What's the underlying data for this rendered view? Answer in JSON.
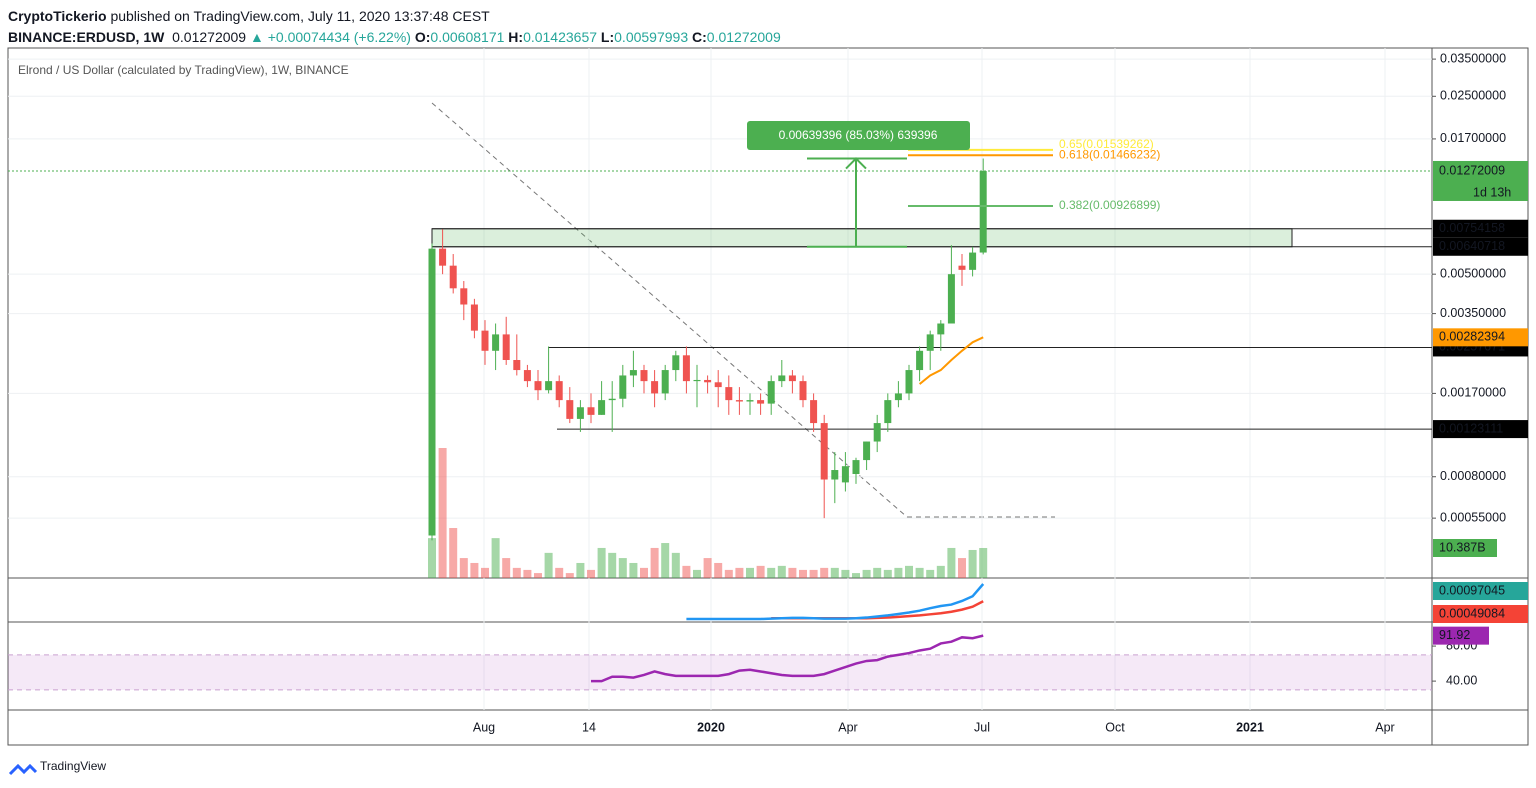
{
  "header": {
    "author": "CryptoTickerio",
    "published": "published on TradingView.com, July 11, 2020 13:37:48 CEST",
    "symbol": "BINANCE:ERDUSD, 1W",
    "change": "▲ +0.00074434 (+6.22%)",
    "ohlc_labels": [
      "O:",
      "H:",
      "L:",
      "C:"
    ]
  },
  "chart_data": {
    "type": "candlestick",
    "title": "Elrond / US Dollar (calculated by TradingView), 1W, BINANCE",
    "log_scale": true,
    "grid": true,
    "up_color": "#4caf50",
    "down_color": "#ef5350",
    "ylim": [
      0.00032,
      0.0387
    ],
    "yticks": [
      {
        "value": 0.035,
        "label": "0.03500000"
      },
      {
        "value": 0.025,
        "label": "0.02500000"
      },
      {
        "value": 0.017,
        "label": "0.01700000"
      },
      {
        "value": 0.005,
        "label": "0.00500000"
      },
      {
        "value": 0.0035,
        "label": "0.00350000"
      },
      {
        "value": 0.0017,
        "label": "0.00170000"
      },
      {
        "value": 0.0008,
        "label": "0.00080000"
      },
      {
        "value": 0.00055,
        "label": "0.00055000"
      }
    ],
    "xticks": [
      "Aug",
      "14",
      "2020",
      "Apr",
      "Jul",
      "Oct",
      "2021",
      "Apr"
    ],
    "open": [
      0.00047,
      0.0063,
      0.0054,
      0.0044,
      0.0038,
      0.003,
      0.0025,
      0.0029,
      0.0023,
      0.0021,
      0.0019,
      0.00175,
      0.0019,
      0.0016,
      0.00135,
      0.0015,
      0.0014,
      0.0016,
      0.00162,
      0.002,
      0.0021,
      0.0019,
      0.0017,
      0.0021,
      0.0024,
      0.0019,
      0.00192,
      0.00188,
      0.0018,
      0.0016,
      0.00158,
      0.0016,
      0.00155,
      0.0019,
      0.002,
      0.0019,
      0.0016,
      0.0013,
      0.00078,
      0.00076,
      0.00082,
      0.00093,
      0.0011,
      0.0013,
      0.0016,
      0.0017,
      0.0021,
      0.0025,
      0.0029,
      0.0032,
      0.0054,
      0.0052,
      0.00608171
    ],
    "high": [
      0.0066,
      0.0075,
      0.006,
      0.0047,
      0.004,
      0.0033,
      0.0032,
      0.0034,
      0.0029,
      0.0022,
      0.0021,
      0.0026,
      0.002,
      0.0018,
      0.0016,
      0.0017,
      0.0019,
      0.0019,
      0.0022,
      0.0025,
      0.0022,
      0.0021,
      0.0022,
      0.0025,
      0.0026,
      0.0022,
      0.002,
      0.0021,
      0.002,
      0.0018,
      0.0017,
      0.0017,
      0.002,
      0.0023,
      0.0021,
      0.002,
      0.0017,
      0.0014,
      0.001,
      0.001,
      0.00095,
      0.0011,
      0.0014,
      0.0017,
      0.0019,
      0.0022,
      0.0026,
      0.003,
      0.0033,
      0.0065,
      0.006,
      0.0064,
      0.01423657
    ],
    "low": [
      0.00045,
      0.005,
      0.0042,
      0.0033,
      0.0028,
      0.0022,
      0.0021,
      0.0022,
      0.002,
      0.0018,
      0.0016,
      0.0017,
      0.0015,
      0.0013,
      0.0012,
      0.0013,
      0.0014,
      0.0012,
      0.0015,
      0.0018,
      0.0017,
      0.0015,
      0.0016,
      0.0019,
      0.0017,
      0.0015,
      0.0017,
      0.0015,
      0.0014,
      0.0014,
      0.0014,
      0.0014,
      0.0014,
      0.0018,
      0.0017,
      0.0015,
      0.0012,
      0.00055,
      0.00063,
      0.0007,
      0.00075,
      0.00085,
      0.001,
      0.0012,
      0.0015,
      0.0016,
      0.0019,
      0.0021,
      0.0025,
      0.0032,
      0.0045,
      0.0049,
      0.00597993
    ],
    "close": [
      0.0063,
      0.0054,
      0.0044,
      0.0038,
      0.003,
      0.0025,
      0.0029,
      0.0023,
      0.0021,
      0.0019,
      0.00175,
      0.0019,
      0.0016,
      0.00135,
      0.0015,
      0.0014,
      0.0016,
      0.00162,
      0.002,
      0.0021,
      0.0019,
      0.0017,
      0.0021,
      0.0024,
      0.0019,
      0.00192,
      0.00188,
      0.0018,
      0.0016,
      0.00158,
      0.0016,
      0.00155,
      0.0019,
      0.002,
      0.0019,
      0.0016,
      0.0013,
      0.00078,
      0.00085,
      0.00088,
      0.00093,
      0.0011,
      0.0013,
      0.0016,
      0.0017,
      0.0021,
      0.0025,
      0.0029,
      0.0032,
      0.005,
      0.0052,
      0.00608,
      0.01272009
    ],
    "countdown": "1d 13h",
    "volume": [
      13.8,
      45,
      17.3,
      6.9,
      5.2,
      3.5,
      13.8,
      6.9,
      3.5,
      2.8,
      1.7,
      8.7,
      3.5,
      1.7,
      5.2,
      2.8,
      10.4,
      8.7,
      6.9,
      5.2,
      3.5,
      10.4,
      12.1,
      8.7,
      4.2,
      2.8,
      6.9,
      5.2,
      2.8,
      3.5,
      3.5,
      4.2,
      3.5,
      4.2,
      3.5,
      2.8,
      2.8,
      3.5,
      3.5,
      2.8,
      1.7,
      2.8,
      3.5,
      2.8,
      3.5,
      4.2,
      3.5,
      2.8,
      4.2,
      10.4,
      6.9,
      9.7,
      10.387
    ],
    "volume_last_label": "10.387B",
    "ema": {
      "color": "#ff9800",
      "values": [
        null,
        null,
        null,
        null,
        null,
        null,
        null,
        null,
        null,
        null,
        null,
        null,
        null,
        null,
        null,
        null,
        null,
        null,
        null,
        null,
        null,
        null,
        null,
        null,
        null,
        null,
        null,
        null,
        null,
        null,
        null,
        null,
        null,
        null,
        null,
        null,
        null,
        null,
        null,
        null,
        null,
        null,
        null,
        null,
        null,
        null,
        0.00185,
        0.002,
        0.0021,
        0.0023,
        0.0025,
        0.0027,
        0.00282394
      ]
    },
    "price_levels": [
      0.00754158,
      0.00640718,
      0.00257671,
      0.00123111
    ],
    "fib_levels": [
      {
        "value": 0.00926899,
        "label": "0.382(0.00926899)",
        "color": "#66bb6a"
      },
      {
        "value": 0.01466232,
        "label": "0.618(0.01466232)",
        "color": "#ff9800"
      },
      {
        "value": 0.01539262,
        "label": "0.65(0.01539262)",
        "color": "#ffeb3b"
      }
    ],
    "measure_label": "0.00639396 (85.03%) 639396",
    "macd": {
      "color": "#2196f3",
      "values": [
        null,
        null,
        null,
        null,
        null,
        null,
        null,
        null,
        null,
        null,
        null,
        null,
        null,
        null,
        null,
        null,
        null,
        null,
        null,
        null,
        null,
        null,
        null,
        null,
        0,
        0,
        0,
        0,
        0,
        0,
        0,
        0,
        1e-05,
        2e-05,
        3e-05,
        3e-05,
        2e-05,
        1e-05,
        1e-05,
        1e-05,
        2e-05,
        4e-05,
        7e-05,
        0.0001,
        0.00014,
        0.00018,
        0.00023,
        0.0003,
        0.00036,
        0.0004,
        0.0005,
        0.00063,
        0.00097045
      ]
    },
    "signal": {
      "color": "#f44336",
      "values": [
        null,
        null,
        null,
        null,
        null,
        null,
        null,
        null,
        null,
        null,
        null,
        null,
        null,
        null,
        null,
        null,
        null,
        null,
        null,
        null,
        null,
        null,
        null,
        null,
        null,
        null,
        null,
        null,
        null,
        null,
        null,
        null,
        2e-05,
        2e-05,
        2e-05,
        2e-05,
        2e-05,
        2e-05,
        2e-05,
        2e-05,
        2e-05,
        2e-05,
        3e-05,
        4e-05,
        6e-05,
        8e-05,
        0.0001,
        0.00013,
        0.00016,
        0.0002,
        0.00026,
        0.00034,
        0.00049084
      ]
    },
    "rsi": {
      "color": "#9c27b0",
      "ylim": [
        7,
        107.5
      ],
      "band": [
        30,
        70
      ],
      "yticks": [
        {
          "value": 80,
          "label": "80.00"
        },
        {
          "value": 40,
          "label": "40.00"
        }
      ],
      "last_label": "91.92",
      "values": [
        null,
        null,
        null,
        null,
        null,
        null,
        null,
        null,
        null,
        null,
        null,
        null,
        null,
        null,
        null,
        40,
        40,
        45,
        45,
        44,
        47,
        51,
        48,
        46,
        46,
        46,
        46,
        46,
        48,
        52,
        53,
        51,
        49,
        47,
        46,
        46,
        46,
        48,
        52,
        56,
        60,
        63,
        64,
        68,
        70,
        72,
        75,
        77,
        83,
        85,
        90,
        89,
        91.92
      ]
    }
  },
  "footer": {
    "brand": "TradingView"
  }
}
